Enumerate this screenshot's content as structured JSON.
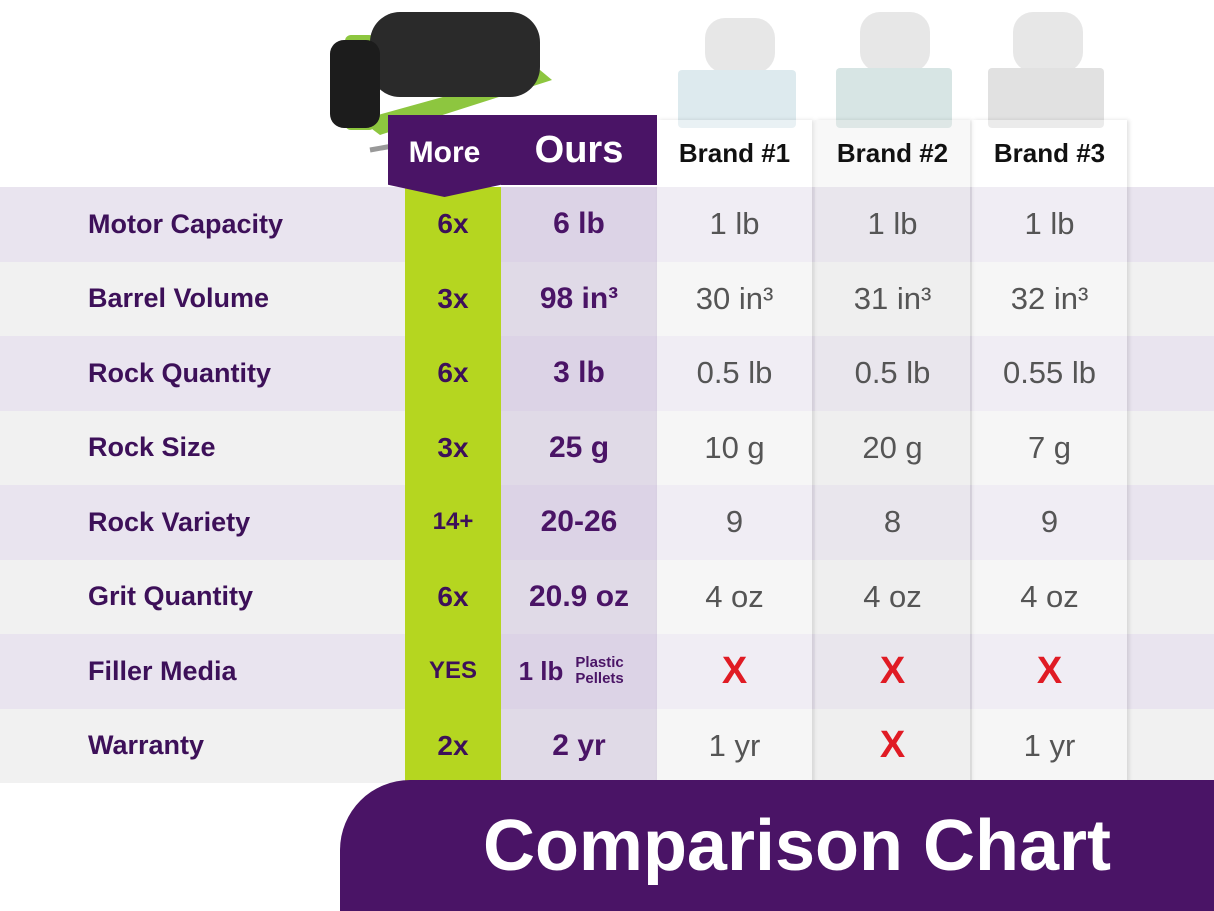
{
  "header": {
    "more": "More",
    "ours": "Ours",
    "brands": [
      "Brand #1",
      "Brand #2",
      "Brand #3"
    ]
  },
  "rows": [
    {
      "label": "Motor Capacity",
      "more": "6x",
      "ours": "6 lb",
      "brands": [
        "1 lb",
        "1 lb",
        "1 lb"
      ]
    },
    {
      "label": "Barrel Volume",
      "more": "3x",
      "ours": "98 in³",
      "brands": [
        "30 in³",
        "31 in³",
        "32 in³"
      ]
    },
    {
      "label": "Rock Quantity",
      "more": "6x",
      "ours": "3 lb",
      "brands": [
        "0.5 lb",
        "0.5 lb",
        "0.55 lb"
      ]
    },
    {
      "label": "Rock Size",
      "more": "3x",
      "ours": "25 g",
      "brands": [
        "10 g",
        "20 g",
        "7 g"
      ]
    },
    {
      "label": "Rock Variety",
      "more": "14+",
      "ours": "20-26",
      "brands": [
        "9",
        "8",
        "9"
      ]
    },
    {
      "label": "Grit Quantity",
      "more": "6x",
      "ours": "20.9 oz",
      "brands": [
        "4 oz",
        "4 oz",
        "4 oz"
      ]
    },
    {
      "label": "Filler Media",
      "more": "YES",
      "ours": "1 lb",
      "ours_note": "Plastic Pellets",
      "brands": [
        "X",
        "X",
        "X"
      ]
    },
    {
      "label": "Warranty",
      "more": "2x",
      "ours": "2 yr",
      "brands": [
        "1 yr",
        "X",
        "1 yr"
      ]
    }
  ],
  "title": "Comparison Chart"
}
